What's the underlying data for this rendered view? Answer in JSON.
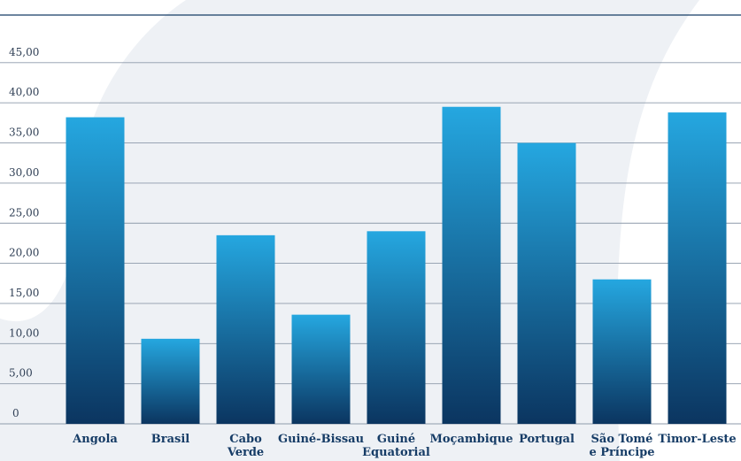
{
  "chart_data": {
    "type": "bar",
    "title": "",
    "xlabel": "",
    "ylabel": "",
    "ylim": [
      0,
      50
    ],
    "yticks": [
      0,
      5,
      10,
      15,
      20,
      25,
      30,
      35,
      40,
      45
    ],
    "ytick_labels": [
      "0",
      "5,00",
      "10,00",
      "15,00",
      "20,00",
      "25,00",
      "30,00",
      "35,00",
      "40,00",
      "45,00"
    ],
    "grid": true,
    "categories": [
      [
        "Angola"
      ],
      [
        "Brasil"
      ],
      [
        "Cabo",
        "Verde"
      ],
      [
        "Guiné-Bissau"
      ],
      [
        "Guiné",
        "Equatorial"
      ],
      [
        "Moçambique"
      ],
      [
        "Portugal"
      ],
      [
        "São Tomé",
        "e Príncipe"
      ],
      [
        "Timor-Leste"
      ]
    ],
    "values": [
      38.2,
      10.6,
      23.5,
      13.6,
      24.0,
      39.5,
      35.0,
      18.0,
      38.8
    ],
    "colors": {
      "bar_top": "#25a7e0",
      "bar_bottom": "#0b3560",
      "grid": "#8d9aaa",
      "swoosh": "#eef1f5",
      "tick_text": "#2f3f55",
      "category_text": "#163c66"
    }
  }
}
